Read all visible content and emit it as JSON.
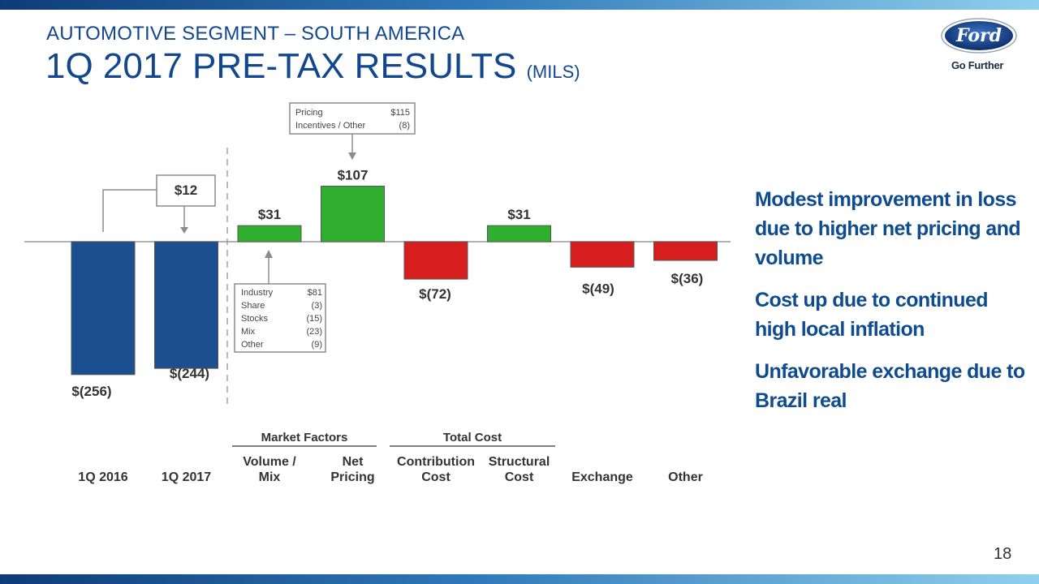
{
  "header": {
    "subtitle": "AUTOMOTIVE SEGMENT – SOUTH AMERICA",
    "title": "1Q 2017 PRE-TAX RESULTS",
    "title_units": "(MILS)"
  },
  "logo": {
    "icon": "ford-oval-logo-icon",
    "brand_text": "Ford",
    "tagline": "Go Further"
  },
  "colors": {
    "title": "#12478e",
    "total_bar": "#1b4f8f",
    "increase_bar": "#2fae2f",
    "decrease_bar": "#d61e1e",
    "bullet_text": "#0f4c8f"
  },
  "chart_data": {
    "type": "bar",
    "subtype": "waterfall",
    "categories": [
      "1Q 2016",
      "1Q 2017",
      "Volume / Mix",
      "Net Pricing",
      "Contribution Cost",
      "Structural Cost",
      "Exchange",
      "Other"
    ],
    "category_lines": [
      [
        "1Q 2016"
      ],
      [
        "1Q 2017"
      ],
      [
        "Volume /",
        "Mix"
      ],
      [
        "Net",
        "Pricing"
      ],
      [
        "Contribution",
        "Cost"
      ],
      [
        "Structural",
        "Cost"
      ],
      [
        "Exchange"
      ],
      [
        "Other"
      ]
    ],
    "kinds": [
      "total",
      "total",
      "change",
      "change",
      "change",
      "change",
      "change",
      "change"
    ],
    "values": [
      -256,
      -244,
      31,
      107,
      -72,
      31,
      -49,
      -36
    ],
    "labels": [
      "$(256)",
      "$(244)",
      "$31",
      "$107",
      "$(72)",
      "$31",
      "$(49)",
      "$(36)"
    ],
    "change_callout": {
      "label": "$12"
    },
    "groups": [
      {
        "name": "Market Factors",
        "categories": [
          "Volume / Mix",
          "Net Pricing"
        ]
      },
      {
        "name": "Total Cost",
        "categories": [
          "Contribution Cost",
          "Structural Cost"
        ]
      }
    ],
    "detail_boxes": [
      {
        "target": "Net Pricing",
        "rows": [
          [
            "Pricing",
            "$115"
          ],
          [
            "Incentives / Other",
            "(8)"
          ]
        ]
      },
      {
        "target": "Volume / Mix",
        "rows": [
          [
            "Industry",
            "$81"
          ],
          [
            "Share",
            "(3)"
          ],
          [
            "Stocks",
            "(15)"
          ],
          [
            "Mix",
            "(23)"
          ],
          [
            "Other",
            "(9)"
          ]
        ]
      }
    ]
  },
  "bullets": [
    "Modest improvement in loss due to higher net pricing and volume",
    "Cost up due to continued high local inflation",
    "Unfavorable exchange due to Brazil real"
  ],
  "page_number": "18"
}
